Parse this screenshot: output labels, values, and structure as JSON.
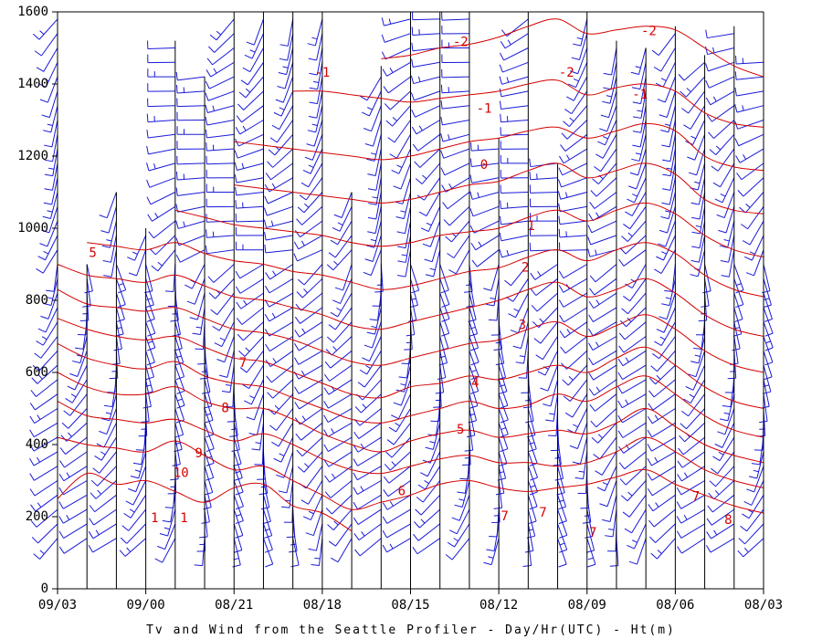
{
  "chart_data": {
    "type": "contour-and-wind-barb time-height plot",
    "caption": "Tv and Wind from the Seattle Profiler - Day/Hr(UTC) - Ht(m)",
    "x_tick_labels": [
      "09/03",
      "09/00",
      "08/21",
      "08/18",
      "08/15",
      "08/12",
      "08/09",
      "08/06",
      "08/03"
    ],
    "y_ticks": [
      0,
      200,
      400,
      600,
      800,
      1000,
      1200,
      1400,
      1600
    ],
    "ylim": [
      0,
      1600
    ],
    "profile_count": 25,
    "profiles_top_m": [
      1600,
      900,
      1100,
      1000,
      1520,
      1420,
      1600,
      1600,
      1600,
      1600,
      1100,
      1450,
      1600,
      1600,
      1600,
      1250,
      1600,
      1180,
      1600,
      1520,
      1500,
      1560,
      1480,
      1560,
      1480
    ],
    "colors": {
      "contours": "#d40000",
      "barbs": "#1a1ad8",
      "axes": "#000000"
    },
    "contour_labels": [
      {
        "text": "-1",
        "t": 9.0,
        "h": 1430
      },
      {
        "text": "-2",
        "t": 13.7,
        "h": 1515
      },
      {
        "text": "-1",
        "t": 14.5,
        "h": 1330
      },
      {
        "text": "0",
        "t": 14.5,
        "h": 1175
      },
      {
        "text": "1",
        "t": 16.1,
        "h": 1005
      },
      {
        "text": "2",
        "t": 15.9,
        "h": 890
      },
      {
        "text": "3",
        "t": 15.8,
        "h": 730
      },
      {
        "text": "4",
        "t": 14.2,
        "h": 570
      },
      {
        "text": "5",
        "t": 13.7,
        "h": 440
      },
      {
        "text": "6",
        "t": 11.7,
        "h": 270
      },
      {
        "text": "7",
        "t": 15.2,
        "h": 200
      },
      {
        "text": "7",
        "t": 16.5,
        "h": 210
      },
      {
        "text": "7",
        "t": 18.2,
        "h": 155
      },
      {
        "text": "-2",
        "t": 17.3,
        "h": 1430
      },
      {
        "text": "-2",
        "t": 20.1,
        "h": 1545
      },
      {
        "text": "-1",
        "t": 19.8,
        "h": 1370
      },
      {
        "text": "7",
        "t": 21.7,
        "h": 255
      },
      {
        "text": "8",
        "t": 22.8,
        "h": 190
      },
      {
        "text": "5",
        "t": 1.2,
        "h": 930
      },
      {
        "text": "7",
        "t": 6.3,
        "h": 625
      },
      {
        "text": "8",
        "t": 5.7,
        "h": 500
      },
      {
        "text": "9",
        "t": 4.8,
        "h": 375
      },
      {
        "text": "10",
        "t": 4.2,
        "h": 320
      },
      {
        "text": "1",
        "t": 3.3,
        "h": 195
      },
      {
        "text": "1",
        "t": 4.3,
        "h": 195
      }
    ],
    "contours": [
      [
        [
          0,
          250
        ],
        [
          1,
          320
        ],
        [
          2,
          290
        ],
        [
          3,
          300
        ],
        [
          4,
          270
        ],
        [
          5,
          240
        ],
        [
          6,
          280
        ],
        [
          7,
          290
        ],
        [
          8,
          230
        ],
        [
          9,
          210
        ],
        [
          10,
          160
        ]
      ],
      [
        [
          0,
          420
        ],
        [
          1,
          400
        ],
        [
          2,
          390
        ],
        [
          3,
          380
        ],
        [
          4,
          410
        ],
        [
          5,
          370
        ],
        [
          6,
          330
        ],
        [
          7,
          340
        ],
        [
          8,
          300
        ],
        [
          9,
          260
        ],
        [
          10,
          220
        ],
        [
          11,
          240
        ],
        [
          12,
          260
        ],
        [
          13,
          290
        ],
        [
          14,
          300
        ],
        [
          15,
          280
        ],
        [
          16,
          270
        ],
        [
          17,
          280
        ],
        [
          18,
          290
        ],
        [
          19,
          310
        ],
        [
          20,
          330
        ],
        [
          21,
          290
        ],
        [
          22,
          260
        ],
        [
          23,
          230
        ],
        [
          24,
          210
        ]
      ],
      [
        [
          0,
          520
        ],
        [
          1,
          480
        ],
        [
          2,
          470
        ],
        [
          3,
          460
        ],
        [
          4,
          470
        ],
        [
          5,
          440
        ],
        [
          6,
          410
        ],
        [
          7,
          430
        ],
        [
          8,
          400
        ],
        [
          9,
          360
        ],
        [
          10,
          330
        ],
        [
          11,
          320
        ],
        [
          12,
          340
        ],
        [
          13,
          360
        ],
        [
          14,
          370
        ],
        [
          15,
          350
        ],
        [
          16,
          350
        ],
        [
          17,
          340
        ],
        [
          18,
          350
        ],
        [
          19,
          380
        ],
        [
          20,
          420
        ],
        [
          21,
          380
        ],
        [
          22,
          330
        ],
        [
          23,
          300
        ],
        [
          24,
          280
        ]
      ],
      [
        [
          0,
          600
        ],
        [
          1,
          560
        ],
        [
          2,
          540
        ],
        [
          3,
          540
        ],
        [
          4,
          560
        ],
        [
          5,
          520
        ],
        [
          6,
          500
        ],
        [
          7,
          500
        ],
        [
          8,
          470
        ],
        [
          9,
          430
        ],
        [
          10,
          400
        ],
        [
          11,
          380
        ],
        [
          12,
          410
        ],
        [
          13,
          430
        ],
        [
          14,
          440
        ],
        [
          15,
          420
        ],
        [
          16,
          430
        ],
        [
          17,
          440
        ],
        [
          18,
          430
        ],
        [
          19,
          460
        ],
        [
          20,
          500
        ],
        [
          21,
          450
        ],
        [
          22,
          400
        ],
        [
          23,
          370
        ],
        [
          24,
          350
        ]
      ],
      [
        [
          0,
          680
        ],
        [
          1,
          640
        ],
        [
          2,
          620
        ],
        [
          3,
          610
        ],
        [
          4,
          630
        ],
        [
          5,
          590
        ],
        [
          6,
          570
        ],
        [
          7,
          560
        ],
        [
          8,
          530
        ],
        [
          9,
          500
        ],
        [
          10,
          470
        ],
        [
          11,
          460
        ],
        [
          12,
          480
        ],
        [
          13,
          500
        ],
        [
          14,
          520
        ],
        [
          15,
          500
        ],
        [
          16,
          510
        ],
        [
          17,
          540
        ],
        [
          18,
          520
        ],
        [
          19,
          560
        ],
        [
          20,
          590
        ],
        [
          21,
          540
        ],
        [
          22,
          480
        ],
        [
          23,
          440
        ],
        [
          24,
          420
        ]
      ],
      [
        [
          0,
          750
        ],
        [
          1,
          720
        ],
        [
          2,
          700
        ],
        [
          3,
          690
        ],
        [
          4,
          700
        ],
        [
          5,
          670
        ],
        [
          6,
          640
        ],
        [
          7,
          630
        ],
        [
          8,
          600
        ],
        [
          9,
          570
        ],
        [
          10,
          540
        ],
        [
          11,
          530
        ],
        [
          12,
          560
        ],
        [
          13,
          570
        ],
        [
          14,
          590
        ],
        [
          15,
          580
        ],
        [
          16,
          600
        ],
        [
          17,
          620
        ],
        [
          18,
          600
        ],
        [
          19,
          640
        ],
        [
          20,
          670
        ],
        [
          21,
          620
        ],
        [
          22,
          560
        ],
        [
          23,
          520
        ],
        [
          24,
          500
        ]
      ],
      [
        [
          0,
          830
        ],
        [
          1,
          790
        ],
        [
          2,
          780
        ],
        [
          3,
          770
        ],
        [
          4,
          780
        ],
        [
          5,
          750
        ],
        [
          6,
          720
        ],
        [
          7,
          710
        ],
        [
          8,
          690
        ],
        [
          9,
          660
        ],
        [
          10,
          630
        ],
        [
          11,
          620
        ],
        [
          12,
          640
        ],
        [
          13,
          660
        ],
        [
          14,
          680
        ],
        [
          15,
          690
        ],
        [
          16,
          720
        ],
        [
          17,
          740
        ],
        [
          18,
          700
        ],
        [
          19,
          730
        ],
        [
          20,
          760
        ],
        [
          21,
          720
        ],
        [
          22,
          660
        ],
        [
          23,
          620
        ],
        [
          24,
          600
        ]
      ],
      [
        [
          0,
          900
        ],
        [
          1,
          870
        ],
        [
          2,
          860
        ],
        [
          3,
          850
        ],
        [
          4,
          870
        ],
        [
          5,
          840
        ],
        [
          6,
          810
        ],
        [
          7,
          800
        ],
        [
          8,
          780
        ],
        [
          9,
          760
        ],
        [
          10,
          730
        ],
        [
          11,
          720
        ],
        [
          12,
          740
        ],
        [
          13,
          760
        ],
        [
          14,
          780
        ],
        [
          15,
          800
        ],
        [
          16,
          830
        ],
        [
          17,
          850
        ],
        [
          18,
          810
        ],
        [
          19,
          830
        ],
        [
          20,
          860
        ],
        [
          21,
          820
        ],
        [
          22,
          760
        ],
        [
          23,
          720
        ],
        [
          24,
          700
        ]
      ],
      [
        [
          1,
          960
        ],
        [
          2,
          950
        ],
        [
          3,
          940
        ],
        [
          4,
          960
        ],
        [
          5,
          930
        ],
        [
          6,
          910
        ],
        [
          7,
          900
        ],
        [
          8,
          880
        ],
        [
          9,
          870
        ],
        [
          10,
          850
        ],
        [
          11,
          830
        ],
        [
          12,
          840
        ],
        [
          13,
          860
        ],
        [
          14,
          880
        ],
        [
          15,
          890
        ],
        [
          16,
          920
        ],
        [
          17,
          940
        ],
        [
          18,
          910
        ],
        [
          19,
          940
        ],
        [
          20,
          960
        ],
        [
          21,
          930
        ],
        [
          22,
          870
        ],
        [
          23,
          830
        ],
        [
          24,
          810
        ]
      ],
      [
        [
          4,
          1050
        ],
        [
          5,
          1030
        ],
        [
          6,
          1010
        ],
        [
          7,
          1000
        ],
        [
          8,
          990
        ],
        [
          9,
          980
        ],
        [
          10,
          960
        ],
        [
          11,
          950
        ],
        [
          12,
          960
        ],
        [
          13,
          980
        ],
        [
          14,
          990
        ],
        [
          15,
          1000
        ],
        [
          16,
          1030
        ],
        [
          17,
          1050
        ],
        [
          18,
          1020
        ],
        [
          19,
          1050
        ],
        [
          20,
          1070
        ],
        [
          21,
          1040
        ],
        [
          22,
          980
        ],
        [
          23,
          940
        ],
        [
          24,
          920
        ]
      ],
      [
        [
          6,
          1120
        ],
        [
          7,
          1110
        ],
        [
          8,
          1100
        ],
        [
          9,
          1090
        ],
        [
          10,
          1080
        ],
        [
          11,
          1070
        ],
        [
          12,
          1080
        ],
        [
          13,
          1100
        ],
        [
          14,
          1120
        ],
        [
          15,
          1130
        ],
        [
          16,
          1160
        ],
        [
          17,
          1180
        ],
        [
          18,
          1140
        ],
        [
          19,
          1160
        ],
        [
          20,
          1180
        ],
        [
          21,
          1150
        ],
        [
          22,
          1080
        ],
        [
          23,
          1050
        ],
        [
          24,
          1040
        ]
      ],
      [
        [
          6,
          1240
        ],
        [
          7,
          1230
        ],
        [
          8,
          1220
        ],
        [
          9,
          1210
        ],
        [
          10,
          1200
        ],
        [
          11,
          1190
        ],
        [
          12,
          1200
        ],
        [
          13,
          1220
        ],
        [
          14,
          1240
        ],
        [
          15,
          1250
        ],
        [
          16,
          1270
        ],
        [
          17,
          1280
        ],
        [
          18,
          1250
        ],
        [
          19,
          1270
        ],
        [
          20,
          1290
        ],
        [
          21,
          1270
        ],
        [
          22,
          1200
        ],
        [
          23,
          1170
        ],
        [
          24,
          1160
        ]
      ],
      [
        [
          8,
          1380
        ],
        [
          9,
          1380
        ],
        [
          10,
          1370
        ],
        [
          11,
          1360
        ],
        [
          12,
          1350
        ],
        [
          13,
          1360
        ],
        [
          14,
          1370
        ],
        [
          15,
          1380
        ],
        [
          16,
          1400
        ],
        [
          17,
          1410
        ],
        [
          18,
          1370
        ],
        [
          19,
          1390
        ],
        [
          20,
          1400
        ],
        [
          21,
          1380
        ],
        [
          22,
          1320
        ],
        [
          23,
          1290
        ],
        [
          24,
          1280
        ]
      ],
      [
        [
          11,
          1470
        ],
        [
          12,
          1480
        ],
        [
          13,
          1500
        ],
        [
          14,
          1510
        ],
        [
          15,
          1530
        ],
        [
          16,
          1560
        ],
        [
          17,
          1580
        ],
        [
          18,
          1540
        ],
        [
          19,
          1550
        ],
        [
          20,
          1560
        ],
        [
          21,
          1550
        ],
        [
          22,
          1500
        ],
        [
          23,
          1450
        ],
        [
          24,
          1420
        ]
      ]
    ]
  }
}
